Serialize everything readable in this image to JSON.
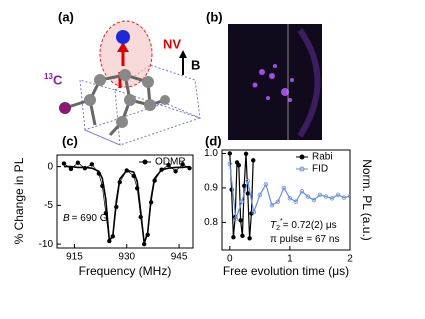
{
  "panels": {
    "a": {
      "label": "(a)",
      "nv": "NV",
      "isotope_mass": "13",
      "isotope_element": "C",
      "field": "B"
    },
    "b": {
      "label": "(b)"
    }
  },
  "chart_data": [
    {
      "type": "line",
      "panel_label": "(c)",
      "xlabel": "Frequency (MHz)",
      "ylabel": "% Change in PL",
      "xlim": [
        910,
        949
      ],
      "ylim": [
        -10.5,
        1.5
      ],
      "xticks": [
        915,
        930,
        945
      ],
      "yticks": [
        -10,
        -5,
        0
      ],
      "legend": "upper right",
      "annotations": [
        {
          "italic": "B",
          "text": "= 690 G"
        }
      ],
      "x": [
        912,
        914,
        916,
        918,
        920,
        922,
        923,
        924,
        925,
        926,
        927,
        928,
        930,
        932,
        933,
        934,
        935,
        936,
        937,
        938,
        940,
        942,
        944,
        946,
        948
      ],
      "series": [
        {
          "name": "ODMR",
          "color": "#000000",
          "marker": "filled",
          "values": [
            0.4,
            -0.3,
            0.5,
            -0.2,
            0.3,
            -0.9,
            -2.5,
            -6.0,
            -9.6,
            -9.0,
            -5.2,
            -2.0,
            -0.5,
            -1.2,
            -2.8,
            -6.5,
            -10.0,
            -8.8,
            -4.6,
            -1.8,
            -0.4,
            0.2,
            -0.6,
            0.3,
            -0.2
          ],
          "fit": [
            0,
            0,
            -0.1,
            -0.1,
            -0.2,
            -0.6,
            -1.5,
            -4.2,
            -9.5,
            -9.0,
            -4.5,
            -1.6,
            -0.5,
            -0.7,
            -1.9,
            -5.8,
            -9.9,
            -8.5,
            -4.0,
            -1.5,
            -0.4,
            -0.2,
            -0.1,
            -0.1,
            0
          ]
        }
      ]
    },
    {
      "type": "line",
      "panel_label": "(d)",
      "xlabel": "Free evolution time (μs)",
      "ylabel": "Norm. PL (a.u.)",
      "xlim": [
        -0.13,
        2.0
      ],
      "ylim": [
        0.72,
        1.01
      ],
      "xticks": [
        0,
        1,
        2
      ],
      "yticks": [
        0.8,
        0.9,
        {
          "value": 1,
          "label": "1.0"
        }
      ],
      "legend": "upper right",
      "annotations": [
        {
          "symbol": "T",
          "sub": "2",
          "sup": "*",
          "text": "= 0.72(2) μs"
        },
        {
          "text": "π pulse = 67 ns"
        }
      ],
      "series": [
        {
          "name": "Rabi",
          "color": "#000000",
          "marker": "filled",
          "x": [
            0,
            0.03,
            0.06,
            0.09,
            0.12,
            0.15,
            0.18,
            0.21,
            0.24,
            0.27,
            0.3,
            0.33,
            0.36,
            0.39
          ],
          "values": [
            1.0,
            0.895,
            0.757,
            0.816,
            0.974,
            0.966,
            0.806,
            0.761,
            0.906,
            0.999,
            0.884,
            0.754,
            0.826,
            0.98
          ]
        },
        {
          "name": "FID",
          "color": "#6a8fe0",
          "marker": "open",
          "x": [
            0,
            0.1,
            0.2,
            0.3,
            0.4,
            0.5,
            0.6,
            0.7,
            0.8,
            0.9,
            1.0,
            1.1,
            1.2,
            1.3,
            1.4,
            1.5,
            1.6,
            1.7,
            1.8,
            1.9,
            2.0
          ],
          "values": [
            0.97,
            0.81,
            0.86,
            0.92,
            0.83,
            0.88,
            0.91,
            0.85,
            0.86,
            0.9,
            0.87,
            0.86,
            0.89,
            0.875,
            0.865,
            0.88,
            0.875,
            0.87,
            0.88,
            0.872,
            0.876
          ]
        }
      ]
    }
  ]
}
